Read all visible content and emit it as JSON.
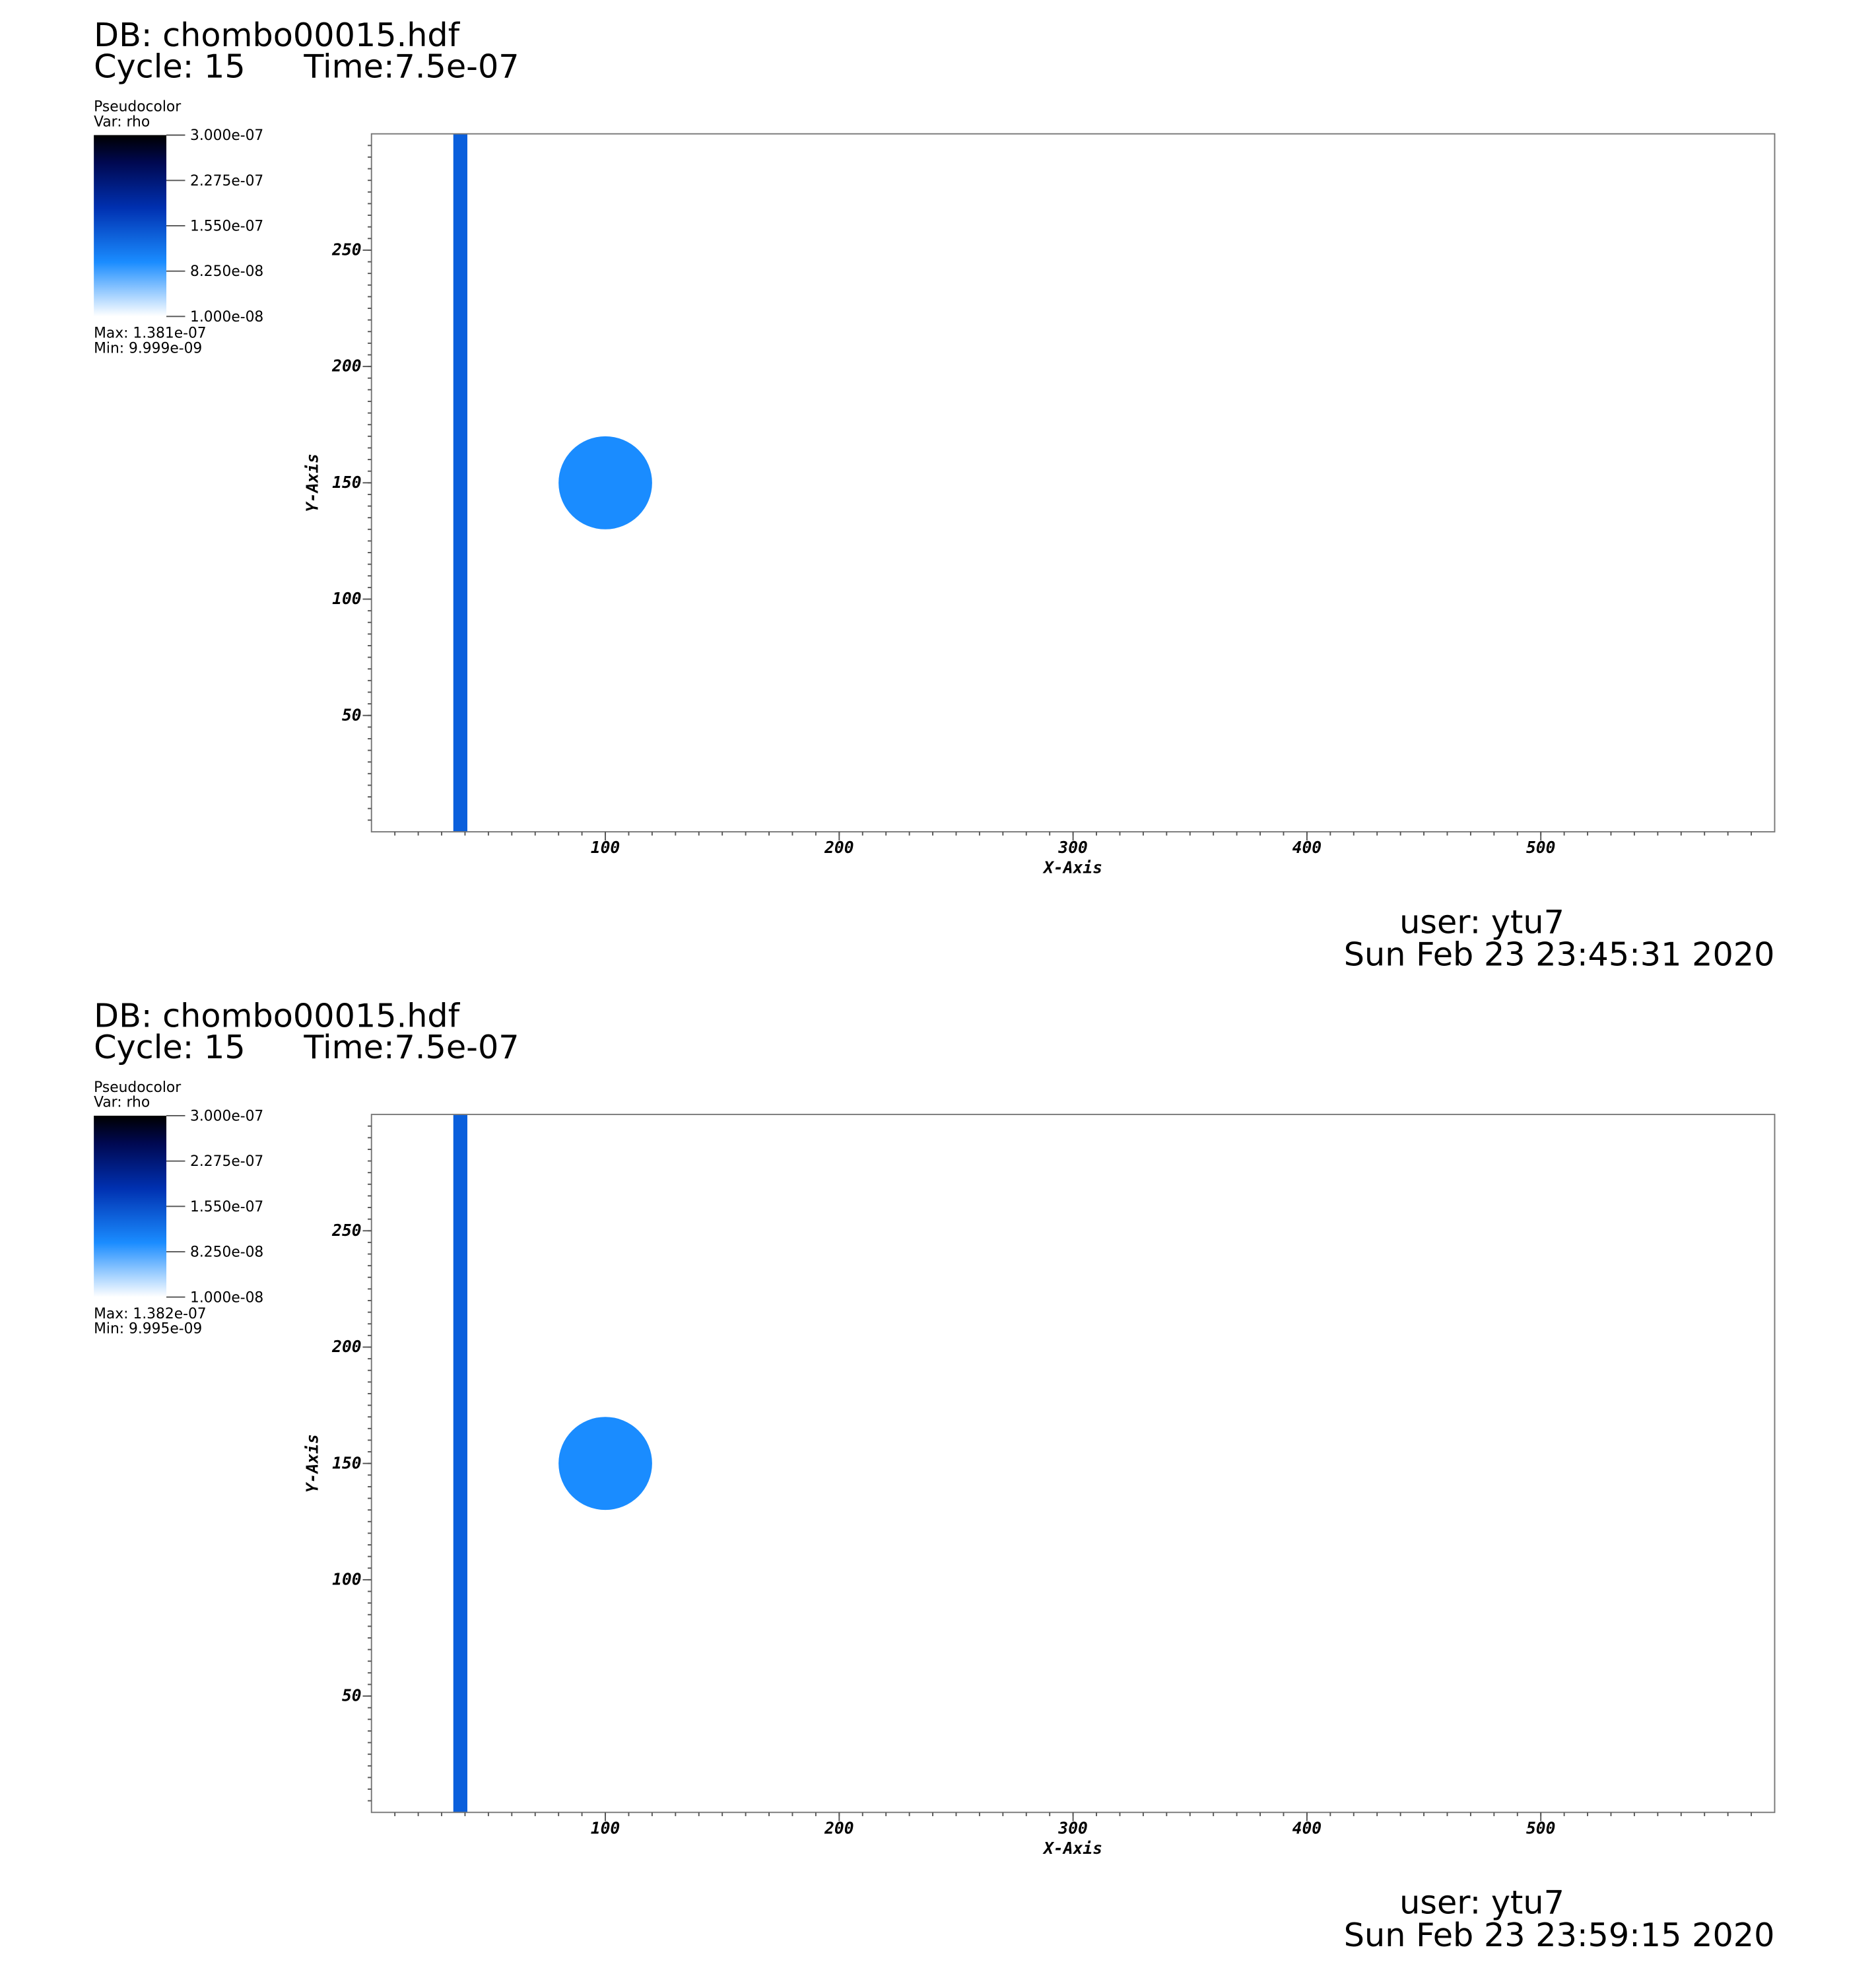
{
  "chart_data": [
    {
      "type": "pseudocolor",
      "db": "DB: chombo00015.hdf",
      "cycle": "Cycle: 15",
      "time": "Time:7.5e-07",
      "legend": {
        "title": "Pseudocolor",
        "var": "Var: rho",
        "max_text": "Max:  1.381e-07",
        "min_text": "Min:  9.999e-09",
        "ticks": [
          {
            "value": 3e-07,
            "label": "3.000e-07"
          },
          {
            "value": 2.275e-07,
            "label": "2.275e-07"
          },
          {
            "value": 1.55e-07,
            "label": "1.550e-07"
          },
          {
            "value": 8.25e-08,
            "label": "8.250e-08"
          },
          {
            "value": 1e-08,
            "label": "1.000e-08"
          }
        ]
      },
      "xlabel": "X-Axis",
      "ylabel": "Y-Axis",
      "xlim": [
        0,
        600
      ],
      "ylim": [
        0,
        300
      ],
      "xticks": [
        100,
        200,
        300,
        400,
        500
      ],
      "yticks": [
        50,
        100,
        150,
        200,
        250
      ],
      "stripe": {
        "x": [
          35,
          41
        ],
        "color": "#0a5fdc"
      },
      "circle": {
        "cx": 100,
        "cy": 150,
        "r": 20,
        "color": "#1a8cff"
      },
      "user": "user: ytu7",
      "date": "Sun Feb 23 23:45:31 2020"
    },
    {
      "type": "pseudocolor",
      "db": "DB: chombo00015.hdf",
      "cycle": "Cycle: 15",
      "time": "Time:7.5e-07",
      "legend": {
        "title": "Pseudocolor",
        "var": "Var: rho",
        "max_text": "Max:  1.382e-07",
        "min_text": "Min:  9.995e-09",
        "ticks": [
          {
            "value": 3e-07,
            "label": "3.000e-07"
          },
          {
            "value": 2.275e-07,
            "label": "2.275e-07"
          },
          {
            "value": 1.55e-07,
            "label": "1.550e-07"
          },
          {
            "value": 8.25e-08,
            "label": "8.250e-08"
          },
          {
            "value": 1e-08,
            "label": "1.000e-08"
          }
        ]
      },
      "xlabel": "X-Axis",
      "ylabel": "Y-Axis",
      "xlim": [
        0,
        600
      ],
      "ylim": [
        0,
        300
      ],
      "xticks": [
        100,
        200,
        300,
        400,
        500
      ],
      "yticks": [
        50,
        100,
        150,
        200,
        250
      ],
      "stripe": {
        "x": [
          35,
          41
        ],
        "color": "#0a5fdc"
      },
      "circle": {
        "cx": 100,
        "cy": 150,
        "r": 20,
        "color": "#1a8cff"
      },
      "user": "user: ytu7",
      "date": "Sun Feb 23 23:59:15 2020"
    }
  ]
}
